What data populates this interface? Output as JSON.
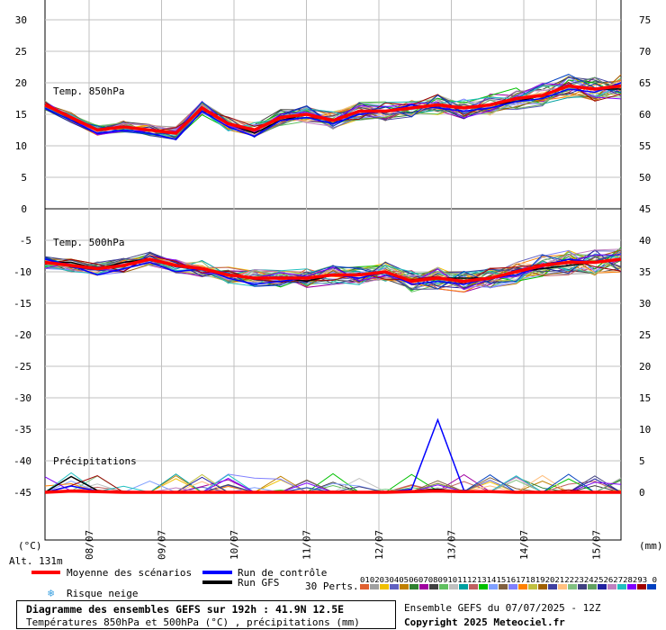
{
  "chart_data": [
    {
      "type": "line",
      "label": "Temp. 850hPa",
      "ylim": [
        0,
        30
      ],
      "yticks": [
        0,
        5,
        10,
        15,
        20,
        25,
        30
      ],
      "unit": "°C",
      "mean": [
        16.5,
        14.5,
        12.5,
        13.0,
        12.5,
        12.0,
        16.0,
        13.5,
        12.5,
        14.5,
        15.0,
        14.0,
        15.5,
        15.5,
        16.0,
        16.5,
        16.0,
        16.5,
        17.5,
        18.0,
        19.5,
        19.0,
        19.5
      ],
      "control": [
        16.0,
        14.0,
        12.0,
        12.5,
        12.0,
        11.0,
        15.5,
        13.0,
        11.5,
        14.0,
        14.5,
        13.5,
        15.0,
        15.5,
        16.5,
        16.0,
        15.5,
        16.0,
        17.0,
        17.5,
        19.0,
        18.5,
        20.0
      ],
      "gfs": [
        16.5,
        14.5,
        12.5,
        13.0,
        12.5,
        12.0,
        16.0,
        13.5,
        12.0,
        14.0,
        15.0,
        14.0,
        15.5,
        15.5,
        16.0,
        16.5,
        16.0,
        16.5,
        17.0,
        18.0,
        19.5,
        19.0,
        19.0
      ]
    },
    {
      "type": "line",
      "label": "Temp. 500hPa",
      "ylim": [
        -45,
        0
      ],
      "yticks": [
        0,
        -5,
        -10,
        -15,
        -20,
        -25,
        -30,
        -35,
        -40,
        -45
      ],
      "unit": "°C",
      "mean": [
        -8.5,
        -9.0,
        -9.5,
        -9.0,
        -8.0,
        -9.0,
        -9.5,
        -10.5,
        -11.0,
        -11.0,
        -11.0,
        -10.5,
        -10.5,
        -10.0,
        -11.5,
        -11.0,
        -11.5,
        -11.0,
        -10.0,
        -9.0,
        -8.5,
        -8.5,
        -8.0
      ],
      "control": [
        -8.0,
        -9.0,
        -10.5,
        -9.5,
        -8.5,
        -10.0,
        -9.5,
        -11.0,
        -12.0,
        -11.5,
        -11.0,
        -10.5,
        -11.0,
        -10.0,
        -12.0,
        -11.5,
        -12.0,
        -11.0,
        -10.5,
        -9.0,
        -8.0,
        -8.5,
        -8.0
      ],
      "gfs": [
        -8.5,
        -8.5,
        -9.5,
        -8.5,
        -8.0,
        -9.0,
        -9.5,
        -10.5,
        -11.0,
        -11.0,
        -11.5,
        -10.5,
        -10.5,
        -10.0,
        -11.5,
        -11.0,
        -11.0,
        -11.0,
        -10.0,
        -9.5,
        -9.0,
        -8.5,
        -8.0
      ]
    },
    {
      "type": "line",
      "label": "Précipitations",
      "ylim": [
        0,
        45
      ],
      "right_ticks_850": [
        50,
        55,
        60,
        65,
        70,
        75
      ],
      "right_ticks_500": [
        45,
        40,
        35,
        30,
        25,
        20,
        15,
        10,
        5,
        0
      ],
      "unit": "mm",
      "mean": [
        0,
        0.2,
        0.1,
        0,
        0,
        0,
        0,
        0,
        0,
        0,
        0,
        0,
        0,
        0,
        0.1,
        0.2,
        0.1,
        0.1,
        0,
        0,
        0,
        0,
        0
      ],
      "control": [
        0,
        1.0,
        0.2,
        0,
        0,
        0,
        0,
        0,
        0,
        0,
        0,
        0,
        0,
        0,
        0.5,
        11.5,
        0.3,
        0,
        0,
        0,
        0,
        0,
        0
      ],
      "gfs": [
        0,
        2.5,
        0.3,
        0,
        0.1,
        0,
        0,
        0,
        0,
        0,
        0,
        0,
        0,
        0,
        0.2,
        0.5,
        0,
        0,
        0,
        0,
        0,
        0,
        0
      ]
    }
  ],
  "axes": {
    "left_unit": "(°C)",
    "right_unit": "(mm)",
    "dates": [
      "08/07",
      "09/07",
      "10/07",
      "11/07",
      "12/07",
      "13/07",
      "14/07",
      "15/07"
    ]
  },
  "colors": {
    "mean": "#ff0000",
    "control": "#0000ff",
    "gfs": "#000000",
    "grid": "#c0c0c0",
    "perts": [
      "#e06030",
      "#a0a0a0",
      "#f0c000",
      "#6060c0",
      "#c08000",
      "#308030",
      "#a000a0",
      "#404040",
      "#60c060",
      "#c0c0c0",
      "#00a0a0",
      "#c06060",
      "#00c000",
      "#80a0ff",
      "#806040",
      "#8080ff",
      "#ff8000",
      "#c0c040",
      "#a06000",
      "#4040a0",
      "#ffc080",
      "#80c080",
      "#404080",
      "#60a060",
      "#2020a0",
      "#c080c0",
      "#20c0c0",
      "#8000ff",
      "#a00000",
      "#0040c0"
    ]
  },
  "legend": {
    "alt": "Alt. 131m",
    "mean_label": "Moyenne des scénarios",
    "control_label": "Run de contrôle",
    "gfs_label": "Run GFS",
    "snow_label": "Risque neige",
    "perts_label": "30 Perts.",
    "pert_numbers": "01020304050607080910111213141516171819202122232425262728293 0"
  },
  "footer": {
    "title": "Diagramme des ensembles GEFS sur 192h : 41.9N 12.5E",
    "subtitle": "Températures 850hPa et 500hPa (°C) , précipitations (mm)",
    "run": "Ensemble GEFS du 07/07/2025 - 12Z",
    "copyright": "Copyright 2025 Meteociel.fr"
  }
}
